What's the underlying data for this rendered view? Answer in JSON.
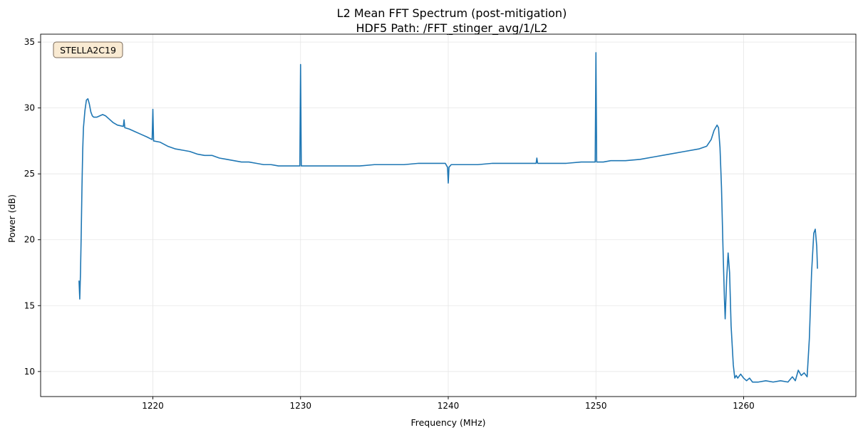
{
  "chart_data": {
    "type": "line",
    "title": "L2 Mean FFT Spectrum (post-mitigation)",
    "subtitle": "HDF5 Path: /FFT_stinger_avg/1/L2",
    "xlabel": "Frequency (MHz)",
    "ylabel": "Power (dB)",
    "xlim": [
      1212.4,
      1267.6
    ],
    "ylim": [
      8.1,
      35.6
    ],
    "xticks": [
      1220,
      1230,
      1240,
      1250,
      1260
    ],
    "yticks": [
      10,
      15,
      20,
      25,
      30,
      35
    ],
    "grid": true,
    "annotation": "STELLA2C19",
    "annotation_placement": "top-left",
    "colors": {
      "line": "#1f77b4",
      "annotation_fill": "#f9ead2",
      "annotation_edge": "#7a6b5a",
      "grid": "#e6e6e6"
    },
    "series": [
      {
        "points": [
          [
            1215.0,
            16.9
          ],
          [
            1215.05,
            15.5
          ],
          [
            1215.1,
            17.5
          ],
          [
            1215.15,
            20.5
          ],
          [
            1215.2,
            24.0
          ],
          [
            1215.25,
            26.8
          ],
          [
            1215.3,
            28.5
          ],
          [
            1215.4,
            29.8
          ],
          [
            1215.5,
            30.6
          ],
          [
            1215.6,
            30.7
          ],
          [
            1215.7,
            30.3
          ],
          [
            1215.8,
            29.7
          ],
          [
            1215.9,
            29.4
          ],
          [
            1216.0,
            29.3
          ],
          [
            1216.2,
            29.3
          ],
          [
            1216.4,
            29.4
          ],
          [
            1216.6,
            29.5
          ],
          [
            1216.8,
            29.4
          ],
          [
            1217.0,
            29.2
          ],
          [
            1217.3,
            28.9
          ],
          [
            1217.6,
            28.7
          ],
          [
            1218.0,
            28.6
          ],
          [
            1218.05,
            29.1
          ],
          [
            1218.1,
            28.5
          ],
          [
            1218.4,
            28.4
          ],
          [
            1218.8,
            28.2
          ],
          [
            1219.2,
            28.0
          ],
          [
            1219.6,
            27.8
          ],
          [
            1219.95,
            27.6
          ],
          [
            1220.0,
            29.9
          ],
          [
            1220.05,
            27.5
          ],
          [
            1220.5,
            27.4
          ],
          [
            1221.0,
            27.1
          ],
          [
            1221.5,
            26.9
          ],
          [
            1222.0,
            26.8
          ],
          [
            1222.5,
            26.7
          ],
          [
            1223.0,
            26.5
          ],
          [
            1223.5,
            26.4
          ],
          [
            1224.0,
            26.4
          ],
          [
            1224.5,
            26.2
          ],
          [
            1225.0,
            26.1
          ],
          [
            1225.5,
            26.0
          ],
          [
            1226.0,
            25.9
          ],
          [
            1226.5,
            25.9
          ],
          [
            1227.0,
            25.8
          ],
          [
            1227.5,
            25.7
          ],
          [
            1228.0,
            25.7
          ],
          [
            1228.5,
            25.6
          ],
          [
            1229.0,
            25.6
          ],
          [
            1229.5,
            25.6
          ],
          [
            1229.95,
            25.6
          ],
          [
            1230.0,
            33.3
          ],
          [
            1230.05,
            25.6
          ],
          [
            1230.5,
            25.6
          ],
          [
            1231.0,
            25.6
          ],
          [
            1232.0,
            25.6
          ],
          [
            1233.0,
            25.6
          ],
          [
            1234.0,
            25.6
          ],
          [
            1235.0,
            25.7
          ],
          [
            1236.0,
            25.7
          ],
          [
            1237.0,
            25.7
          ],
          [
            1238.0,
            25.8
          ],
          [
            1239.0,
            25.8
          ],
          [
            1239.8,
            25.8
          ],
          [
            1239.95,
            25.5
          ],
          [
            1240.0,
            24.3
          ],
          [
            1240.05,
            25.5
          ],
          [
            1240.2,
            25.7
          ],
          [
            1241.0,
            25.7
          ],
          [
            1242.0,
            25.7
          ],
          [
            1243.0,
            25.8
          ],
          [
            1244.0,
            25.8
          ],
          [
            1245.0,
            25.8
          ],
          [
            1245.95,
            25.8
          ],
          [
            1246.0,
            26.2
          ],
          [
            1246.05,
            25.8
          ],
          [
            1247.0,
            25.8
          ],
          [
            1248.0,
            25.8
          ],
          [
            1249.0,
            25.9
          ],
          [
            1249.95,
            25.9
          ],
          [
            1250.0,
            34.2
          ],
          [
            1250.05,
            25.9
          ],
          [
            1250.5,
            25.9
          ],
          [
            1251.0,
            26.0
          ],
          [
            1252.0,
            26.0
          ],
          [
            1253.0,
            26.1
          ],
          [
            1254.0,
            26.3
          ],
          [
            1255.0,
            26.5
          ],
          [
            1256.0,
            26.7
          ],
          [
            1257.0,
            26.9
          ],
          [
            1257.5,
            27.1
          ],
          [
            1257.8,
            27.6
          ],
          [
            1258.0,
            28.3
          ],
          [
            1258.2,
            28.7
          ],
          [
            1258.3,
            28.5
          ],
          [
            1258.4,
            27.0
          ],
          [
            1258.5,
            24.0
          ],
          [
            1258.6,
            19.5
          ],
          [
            1258.7,
            15.5
          ],
          [
            1258.75,
            14.0
          ],
          [
            1258.85,
            17.0
          ],
          [
            1258.95,
            19.0
          ],
          [
            1259.05,
            17.5
          ],
          [
            1259.15,
            13.5
          ],
          [
            1259.3,
            10.5
          ],
          [
            1259.4,
            9.5
          ],
          [
            1259.5,
            9.7
          ],
          [
            1259.6,
            9.5
          ],
          [
            1259.8,
            9.8
          ],
          [
            1260.0,
            9.5
          ],
          [
            1260.2,
            9.3
          ],
          [
            1260.4,
            9.5
          ],
          [
            1260.6,
            9.2
          ],
          [
            1261.0,
            9.2
          ],
          [
            1261.5,
            9.3
          ],
          [
            1262.0,
            9.2
          ],
          [
            1262.5,
            9.3
          ],
          [
            1263.0,
            9.2
          ],
          [
            1263.3,
            9.6
          ],
          [
            1263.5,
            9.3
          ],
          [
            1263.7,
            10.1
          ],
          [
            1263.9,
            9.7
          ],
          [
            1264.1,
            9.9
          ],
          [
            1264.3,
            9.6
          ],
          [
            1264.45,
            12.5
          ],
          [
            1264.6,
            17.5
          ],
          [
            1264.75,
            20.5
          ],
          [
            1264.85,
            20.8
          ],
          [
            1264.95,
            19.5
          ],
          [
            1265.0,
            17.8
          ]
        ]
      }
    ]
  }
}
